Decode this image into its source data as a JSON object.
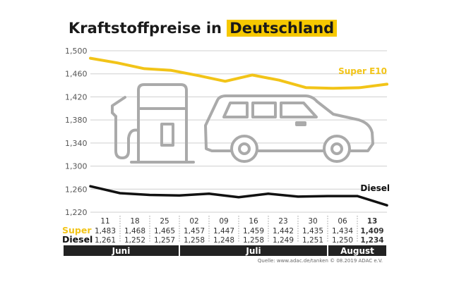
{
  "title_part1": "Kraftstoffpreise in",
  "title_part2": "Deutschland",
  "source": "Quelle: www.adac.de/tanken  © 08.2019 ADAC e.V.",
  "icons": [
    "fuel-pump-icon",
    "car-icon"
  ],
  "colors": {
    "super": "#f2c418",
    "diesel": "#111111",
    "icon": "#aaaaaa",
    "month_bar": "#222222",
    "highlight": "#f6c800"
  },
  "chart_data": {
    "type": "line",
    "x": [
      "11",
      "18",
      "25",
      "02",
      "09",
      "16",
      "23",
      "30",
      "06",
      "13"
    ],
    "x_highlight": "13",
    "ylim": [
      1.22,
      1.5
    ],
    "yticks": [
      "1,500",
      "1,460",
      "1,420",
      "1,380",
      "1,340",
      "1,300",
      "1,260",
      "1,220"
    ],
    "ytick_values": [
      1.5,
      1.46,
      1.42,
      1.38,
      1.34,
      1.3,
      1.26,
      1.22
    ],
    "grid": true,
    "series": [
      {
        "name": "Super E10",
        "row_label": "Super",
        "values": [
          1.483,
          1.468,
          1.465,
          1.457,
          1.447,
          1.459,
          1.442,
          1.435,
          1.434,
          1.409
        ],
        "row_values": [
          "1,483",
          "1,468",
          "1,465",
          "1,457",
          "1,447",
          "1,459",
          "1,442",
          "1,435",
          "1,434",
          "1,409"
        ],
        "line_values": [
          1.487,
          1.479,
          1.469,
          1.466,
          1.457,
          1.447,
          1.458,
          1.449,
          1.436,
          1.435,
          1.436,
          1.442
        ]
      },
      {
        "name": "Diesel",
        "row_label": "Diesel",
        "values": [
          1.261,
          1.252,
          1.257,
          1.258,
          1.248,
          1.258,
          1.249,
          1.251,
          1.25,
          1.234
        ],
        "row_values": [
          "1,261",
          "1,252",
          "1,257",
          "1,258",
          "1,248",
          "1,258",
          "1,249",
          "1,251",
          "1,250",
          "1,234"
        ],
        "line_values": [
          1.265,
          1.253,
          1.25,
          1.249,
          1.252,
          1.246,
          1.252,
          1.247,
          1.248,
          1.248,
          1.232
        ]
      }
    ],
    "months": [
      {
        "label": "Juni",
        "span": [
          0,
          2
        ]
      },
      {
        "label": "Juli",
        "span": [
          3,
          7
        ]
      },
      {
        "label": "August",
        "span": [
          8,
          9
        ]
      }
    ]
  }
}
